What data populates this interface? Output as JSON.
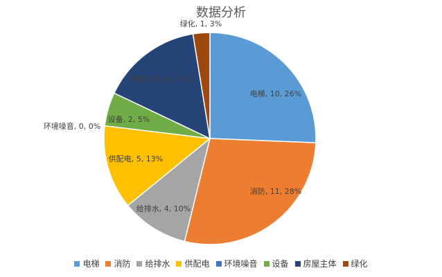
{
  "chart_data": {
    "type": "pie",
    "title": "数据分析",
    "categories": [
      "电梯",
      "消防",
      "给排水",
      "供配电",
      "环境噪音",
      "设备",
      "房屋主体",
      "绿化"
    ],
    "values": [
      10,
      11,
      4,
      5,
      0,
      2,
      6,
      1
    ],
    "percent_labels": [
      "26%",
      "28%",
      "10%",
      "13%",
      "0%",
      "5%",
      "15%",
      "3%"
    ],
    "data_labels": [
      "电梯, 10, 26%",
      "消防, 11, 28%",
      "给排水, 4, 10%",
      "供配电, 5, 13%",
      "环境噪音, 0, 0%",
      "设备, 2, 5%",
      "房屋主体, 6, 15%",
      "绿化, 1, 3%"
    ],
    "colors": [
      "#5B9BD5",
      "#ED7D31",
      "#A5A5A5",
      "#FFC000",
      "#4472C4",
      "#70AD47",
      "#264478",
      "#9E480E"
    ],
    "legend_position": "bottom"
  }
}
